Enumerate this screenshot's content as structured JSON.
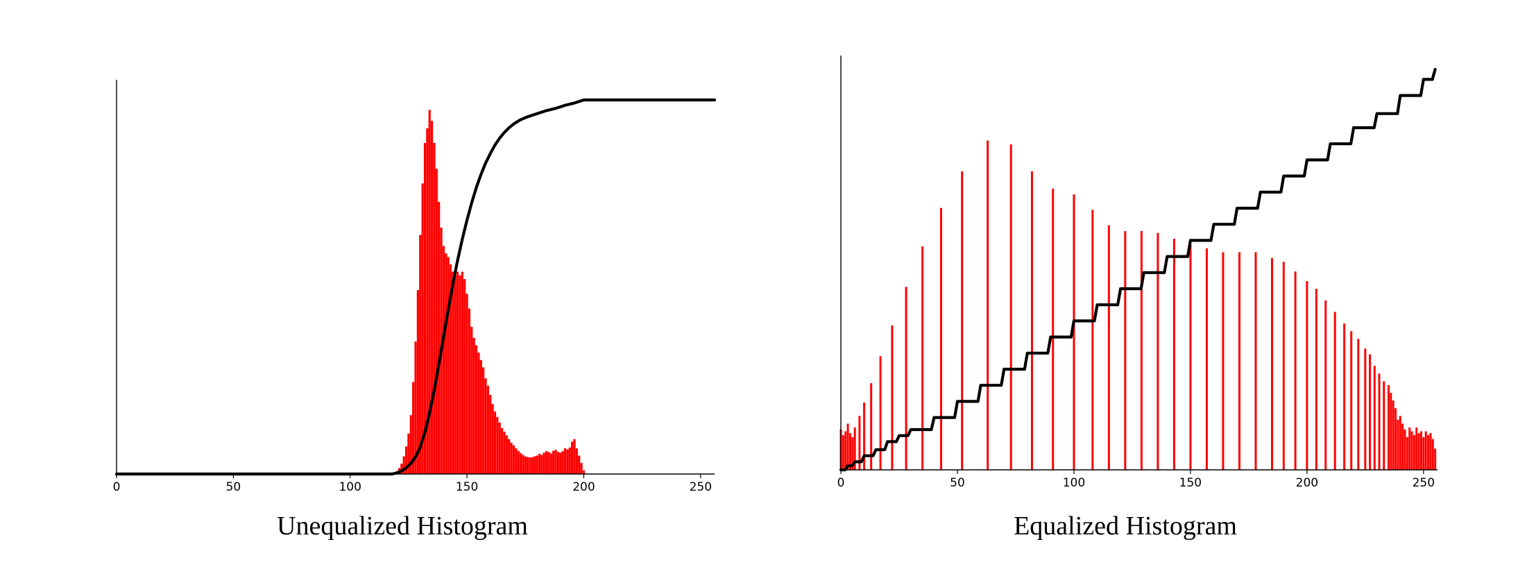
{
  "chart_data": [
    {
      "type": "bar",
      "title": "Unequalized Histogram",
      "xlabel": "",
      "ylabel": "",
      "xlim": [
        0,
        256
      ],
      "ylim": [
        0,
        1
      ],
      "x_ticks": [
        0,
        50,
        100,
        150,
        200,
        250
      ],
      "grid": false,
      "bars": {
        "name": "",
        "color": "#ff0000",
        "x": [
          120,
          121,
          122,
          123,
          124,
          125,
          126,
          127,
          128,
          129,
          130,
          131,
          132,
          133,
          134,
          135,
          136,
          137,
          138,
          139,
          140,
          141,
          142,
          143,
          144,
          145,
          146,
          147,
          148,
          149,
          150,
          151,
          152,
          153,
          154,
          155,
          156,
          157,
          158,
          159,
          160,
          161,
          162,
          163,
          164,
          165,
          166,
          167,
          168,
          169,
          170,
          171,
          172,
          173,
          174,
          175,
          176,
          177,
          178,
          179,
          180,
          181,
          182,
          183,
          184,
          185,
          186,
          187,
          188,
          189,
          190,
          191,
          192,
          193,
          194,
          195,
          196,
          197,
          198,
          199,
          200
        ],
        "values": [
          0.008,
          0.016,
          0.028,
          0.048,
          0.075,
          0.11,
          0.16,
          0.25,
          0.36,
          0.5,
          0.65,
          0.79,
          0.9,
          0.94,
          0.99,
          0.96,
          0.9,
          0.83,
          0.74,
          0.67,
          0.62,
          0.6,
          0.59,
          0.57,
          0.55,
          0.54,
          0.55,
          0.54,
          0.55,
          0.53,
          0.49,
          0.45,
          0.4,
          0.37,
          0.35,
          0.33,
          0.31,
          0.29,
          0.26,
          0.24,
          0.215,
          0.19,
          0.17,
          0.155,
          0.14,
          0.125,
          0.115,
          0.105,
          0.095,
          0.085,
          0.078,
          0.07,
          0.063,
          0.057,
          0.052,
          0.048,
          0.046,
          0.045,
          0.046,
          0.048,
          0.05,
          0.055,
          0.052,
          0.058,
          0.062,
          0.06,
          0.056,
          0.063,
          0.066,
          0.06,
          0.058,
          0.062,
          0.07,
          0.067,
          0.072,
          0.088,
          0.095,
          0.07,
          0.05,
          0.03,
          0.01
        ]
      },
      "cdf": {
        "name": "",
        "color": "#000000",
        "x": [
          0,
          118,
          120,
          122,
          124,
          126,
          128,
          130,
          132,
          134,
          136,
          138,
          140,
          142,
          144,
          146,
          148,
          150,
          152,
          154,
          156,
          158,
          160,
          162,
          164,
          166,
          168,
          170,
          172,
          174,
          176,
          178,
          180,
          184,
          188,
          192,
          196,
          200,
          210,
          230,
          256
        ],
        "values": [
          0,
          0,
          0.003,
          0.008,
          0.016,
          0.028,
          0.045,
          0.07,
          0.11,
          0.16,
          0.22,
          0.29,
          0.36,
          0.43,
          0.5,
          0.56,
          0.615,
          0.665,
          0.71,
          0.75,
          0.785,
          0.815,
          0.84,
          0.862,
          0.88,
          0.895,
          0.907,
          0.917,
          0.925,
          0.931,
          0.936,
          0.94,
          0.944,
          0.952,
          0.958,
          0.966,
          0.972,
          0.98,
          0.98,
          0.98,
          0.98
        ]
      }
    },
    {
      "type": "bar",
      "title": "Equalized Histogram",
      "xlabel": "",
      "ylabel": "",
      "xlim": [
        0,
        256
      ],
      "ylim": [
        0,
        1
      ],
      "x_ticks": [
        0,
        50,
        100,
        150,
        200,
        250
      ],
      "grid": false,
      "bars": {
        "name": "",
        "color": "#ff0000",
        "x": [
          0,
          1,
          2,
          3,
          4,
          5,
          6,
          8,
          10,
          13,
          17,
          22,
          28,
          35,
          43,
          52,
          63,
          73,
          82,
          91,
          100,
          108,
          115,
          122,
          129,
          136,
          143,
          150,
          157,
          164,
          171,
          178,
          185,
          190,
          195,
          200,
          204,
          208,
          212,
          216,
          219,
          222,
          225,
          227,
          229,
          231,
          233,
          235,
          236,
          237,
          238,
          239,
          240,
          241,
          242,
          243,
          244,
          245,
          246,
          247,
          248,
          249,
          250,
          251,
          252,
          253,
          254,
          255
        ],
        "values": [
          0.105,
          0.09,
          0.1,
          0.12,
          0.095,
          0.085,
          0.11,
          0.14,
          0.175,
          0.225,
          0.295,
          0.375,
          0.475,
          0.58,
          0.68,
          0.775,
          0.855,
          0.845,
          0.775,
          0.73,
          0.715,
          0.675,
          0.635,
          0.62,
          0.62,
          0.615,
          0.6,
          0.585,
          0.575,
          0.565,
          0.565,
          0.565,
          0.55,
          0.54,
          0.515,
          0.49,
          0.47,
          0.44,
          0.41,
          0.38,
          0.36,
          0.34,
          0.315,
          0.3,
          0.27,
          0.25,
          0.23,
          0.22,
          0.2,
          0.18,
          0.16,
          0.13,
          0.14,
          0.12,
          0.105,
          0.085,
          0.11,
          0.1,
          0.09,
          0.11,
          0.095,
          0.1,
          0.085,
          0.1,
          0.09,
          0.095,
          0.08,
          0.055
        ]
      },
      "cdf": {
        "name": "",
        "color": "#000000",
        "x": [
          0,
          3,
          6,
          10,
          15,
          20,
          25,
          30,
          40,
          50,
          60,
          70,
          80,
          90,
          100,
          110,
          120,
          130,
          140,
          150,
          160,
          170,
          180,
          190,
          200,
          210,
          220,
          230,
          240,
          250,
          255
        ],
        "values": [
          0,
          0.01,
          0.02,
          0.035,
          0.05,
          0.07,
          0.085,
          0.1,
          0.13,
          0.17,
          0.21,
          0.25,
          0.29,
          0.33,
          0.37,
          0.41,
          0.45,
          0.49,
          0.53,
          0.57,
          0.61,
          0.65,
          0.69,
          0.73,
          0.77,
          0.81,
          0.85,
          0.885,
          0.93,
          0.97,
          0.995
        ]
      }
    }
  ]
}
